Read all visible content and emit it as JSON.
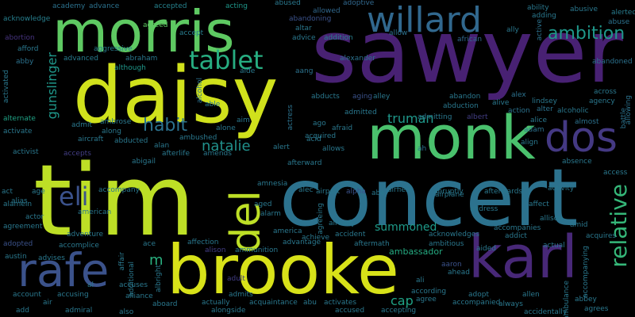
{
  "words": [
    {
      "text": "sawyer",
      "color": "#482173"
    },
    {
      "text": "tim",
      "color": "#bddf26"
    },
    {
      "text": "concert",
      "color": "#2c728e"
    },
    {
      "text": "daisy",
      "color": "#d0e11c"
    },
    {
      "text": "brooke",
      "color": "#d8e219"
    },
    {
      "text": "morris",
      "color": "#5ec962"
    },
    {
      "text": "monk",
      "color": "#4ac16d"
    },
    {
      "text": "karl",
      "color": "#482878"
    },
    {
      "text": "willard",
      "color": "#31688e"
    },
    {
      "text": "rafe",
      "color": "#3b528b"
    },
    {
      "text": "dos",
      "color": "#443983"
    },
    {
      "text": "del",
      "color": "#bddf26"
    },
    {
      "text": "tablet",
      "color": "#27ad81"
    },
    {
      "text": "relative",
      "color": "#35b779"
    },
    {
      "text": "ambition",
      "color": "#1f988b"
    },
    {
      "text": "eli",
      "color": "#3b528b"
    },
    {
      "text": "habit",
      "color": "#2c728e"
    },
    {
      "text": "natalie",
      "color": "#21918c"
    },
    {
      "text": "gunslinger",
      "color": "#1f988b"
    },
    {
      "text": "truman",
      "color": "#1f988b"
    },
    {
      "text": "summoned",
      "color": "#1e9b8a"
    },
    {
      "text": "cap",
      "color": "#20a386"
    },
    {
      "text": "m",
      "color": "#2ab07f"
    },
    {
      "text": "ambassador",
      "color": "#25ac82"
    },
    {
      "text": "acknowledge",
      "color": "#277f8e"
    },
    {
      "text": "academy",
      "color": "#2c728e"
    },
    {
      "text": "advance",
      "color": "#2c728e"
    },
    {
      "text": "accepted",
      "color": "#26828e"
    },
    {
      "text": "acting",
      "color": "#1f988b"
    },
    {
      "text": "abused",
      "color": "#2a788e"
    },
    {
      "text": "adoptive",
      "color": "#31688e"
    },
    {
      "text": "ability",
      "color": "#2a788e"
    },
    {
      "text": "abusive",
      "color": "#2a788e"
    },
    {
      "text": "alerted",
      "color": "#287c8e"
    },
    {
      "text": "abortion",
      "color": "#46337e"
    },
    {
      "text": "abandoning",
      "color": "#3b528b"
    },
    {
      "text": "allowed",
      "color": "#31688e"
    },
    {
      "text": "adding",
      "color": "#2a788e"
    },
    {
      "text": "abuse",
      "color": "#2c728e"
    },
    {
      "text": "agreed",
      "color": "#5ec962"
    },
    {
      "text": "accept",
      "color": "#287c8e"
    },
    {
      "text": "altar",
      "color": "#2a788e"
    },
    {
      "text": "advice",
      "color": "#2a788e"
    },
    {
      "text": "addition",
      "color": "#277f8e"
    },
    {
      "text": "allow",
      "color": "#2c728e"
    },
    {
      "text": "african",
      "color": "#31688e"
    },
    {
      "text": "ally",
      "color": "#2a788e"
    },
    {
      "text": "active",
      "color": "#2c728e"
    },
    {
      "text": "afford",
      "color": "#2a788e"
    },
    {
      "text": "abby",
      "color": "#2c728e"
    },
    {
      "text": "aggressive",
      "color": "#287c8e"
    },
    {
      "text": "advanced",
      "color": "#287c8e"
    },
    {
      "text": "abraham",
      "color": "#2a788e"
    },
    {
      "text": "although",
      "color": "#1f988b"
    },
    {
      "text": "aide",
      "color": "#2a788e"
    },
    {
      "text": "aang",
      "color": "#2c728e"
    },
    {
      "text": "alexander",
      "color": "#2c728e"
    },
    {
      "text": "abandoned",
      "color": "#2c728e"
    },
    {
      "text": "alcohol",
      "color": "#2c728e"
    },
    {
      "text": "activated",
      "color": "#2a788e"
    },
    {
      "text": "able",
      "color": "#2a788e"
    },
    {
      "text": "abducts",
      "color": "#2a788e"
    },
    {
      "text": "aging",
      "color": "#3b528b"
    },
    {
      "text": "alley",
      "color": "#2a788e"
    },
    {
      "text": "abandon",
      "color": "#2a788e"
    },
    {
      "text": "alive",
      "color": "#2a788e"
    },
    {
      "text": "alex",
      "color": "#2c728e"
    },
    {
      "text": "lindsey",
      "color": "#2a788e"
    },
    {
      "text": "across",
      "color": "#2a788e"
    },
    {
      "text": "agency",
      "color": "#2a788e"
    },
    {
      "text": "battle",
      "color": "#2c728e"
    },
    {
      "text": "allowing",
      "color": "#2c728e"
    },
    {
      "text": "alternate",
      "color": "#20a386"
    },
    {
      "text": "admit",
      "color": "#2a788e"
    },
    {
      "text": "ambrose",
      "color": "#2a788e"
    },
    {
      "text": "aim",
      "color": "#2a788e"
    },
    {
      "text": "actress",
      "color": "#2c728e"
    },
    {
      "text": "admitted",
      "color": "#2a788e"
    },
    {
      "text": "abduction",
      "color": "#2a788e"
    },
    {
      "text": "action",
      "color": "#2c728e"
    },
    {
      "text": "alter",
      "color": "#2c728e"
    },
    {
      "text": "alcoholic",
      "color": "#2a788e"
    },
    {
      "text": "almost",
      "color": "#2c728e"
    },
    {
      "text": "activate",
      "color": "#2a788e"
    },
    {
      "text": "aircraft",
      "color": "#2a788e"
    },
    {
      "text": "along",
      "color": "#2a788e"
    },
    {
      "text": "alan",
      "color": "#2a788e"
    },
    {
      "text": "alone",
      "color": "#2a788e"
    },
    {
      "text": "ago",
      "color": "#2a788e"
    },
    {
      "text": "admitting",
      "color": "#2a788e"
    },
    {
      "text": "albert",
      "color": "#433e85"
    },
    {
      "text": "alice",
      "color": "#2a788e"
    },
    {
      "text": "adam",
      "color": "#2c728e"
    },
    {
      "text": "abducted",
      "color": "#2a788e"
    },
    {
      "text": "ambushed",
      "color": "#2a788e"
    },
    {
      "text": "acid",
      "color": "#2a788e"
    },
    {
      "text": "afraid",
      "color": "#2a788e"
    },
    {
      "text": "acquired",
      "color": "#2a788e"
    },
    {
      "text": "align",
      "color": "#2a788e"
    },
    {
      "text": "activist",
      "color": "#2a788e"
    },
    {
      "text": "accepts",
      "color": "#433e85"
    },
    {
      "text": "afterlife",
      "color": "#2a788e"
    },
    {
      "text": "amends",
      "color": "#2a788e"
    },
    {
      "text": "alert",
      "color": "#2a788e"
    },
    {
      "text": "allows",
      "color": "#2a788e"
    },
    {
      "text": "ah",
      "color": "#2c728e"
    },
    {
      "text": "absence",
      "color": "#2a788e"
    },
    {
      "text": "abigail",
      "color": "#2a788e"
    },
    {
      "text": "afterward",
      "color": "#2a788e"
    },
    {
      "text": "act",
      "color": "#2a788e"
    },
    {
      "text": "age",
      "color": "#2a788e"
    },
    {
      "text": "accompany",
      "color": "#2a788e"
    },
    {
      "text": "amnesia",
      "color": "#2a788e"
    },
    {
      "text": "airport",
      "color": "#2a788e"
    },
    {
      "text": "alpha",
      "color": "#3b528b"
    },
    {
      "text": "abe",
      "color": "#2a788e"
    },
    {
      "text": "airfield",
      "color": "#2a788e"
    },
    {
      "text": "abruptly",
      "color": "#2a788e"
    },
    {
      "text": "afterwards",
      "color": "#2a788e"
    },
    {
      "text": "activity",
      "color": "#2a788e"
    },
    {
      "text": "access",
      "color": "#2a788e"
    },
    {
      "text": "alamein",
      "color": "#2a788e"
    },
    {
      "text": "alec",
      "color": "#2a788e"
    },
    {
      "text": "airplane",
      "color": "#2a788e"
    },
    {
      "text": "alias",
      "color": "#2a788e"
    },
    {
      "text": "american",
      "color": "#2a788e"
    },
    {
      "text": "aged",
      "color": "#2a788e"
    },
    {
      "text": "agreeing",
      "color": "#2a788e"
    },
    {
      "text": "address",
      "color": "#2a788e"
    },
    {
      "text": "affect",
      "color": "#2a788e"
    },
    {
      "text": "actor",
      "color": "#2a788e"
    },
    {
      "text": "alarm",
      "color": "#2a788e"
    },
    {
      "text": "already",
      "color": "#2a788e"
    },
    {
      "text": "allison",
      "color": "#2a788e"
    },
    {
      "text": "agreement",
      "color": "#2a788e"
    },
    {
      "text": "accompanies",
      "color": "#2a788e"
    },
    {
      "text": "amid",
      "color": "#2a788e"
    },
    {
      "text": "adventure",
      "color": "#2a788e"
    },
    {
      "text": "america",
      "color": "#2a788e"
    },
    {
      "text": "achieve",
      "color": "#2a788e"
    },
    {
      "text": "accident",
      "color": "#2a788e"
    },
    {
      "text": "acknowledges",
      "color": "#2a788e"
    },
    {
      "text": "addict",
      "color": "#2a788e"
    },
    {
      "text": "acquires",
      "color": "#2a788e"
    },
    {
      "text": "adopted",
      "color": "#3b528b"
    },
    {
      "text": "accomplice",
      "color": "#2a788e"
    },
    {
      "text": "ace",
      "color": "#2a788e"
    },
    {
      "text": "affection",
      "color": "#2a788e"
    },
    {
      "text": "advantage",
      "color": "#2a788e"
    },
    {
      "text": "aftermath",
      "color": "#2a788e"
    },
    {
      "text": "ambitious",
      "color": "#2a788e"
    },
    {
      "text": "aided",
      "color": "#2a788e"
    },
    {
      "text": "actual",
      "color": "#2a788e"
    },
    {
      "text": "austin",
      "color": "#2a788e"
    },
    {
      "text": "advises",
      "color": "#2a788e"
    },
    {
      "text": "affair",
      "color": "#2a788e"
    },
    {
      "text": "alison",
      "color": "#433e85"
    },
    {
      "text": "ammunition",
      "color": "#2a788e"
    },
    {
      "text": "aaron",
      "color": "#3b528b"
    },
    {
      "text": "ahead",
      "color": "#2a788e"
    },
    {
      "text": "accompanying",
      "color": "#2a788e"
    },
    {
      "text": "additional",
      "color": "#2a788e"
    },
    {
      "text": "albright",
      "color": "#2a788e"
    },
    {
      "text": "adult",
      "color": "#433e85"
    },
    {
      "text": "al",
      "color": "#2a788e"
    },
    {
      "text": "accuses",
      "color": "#2a788e"
    },
    {
      "text": "ali",
      "color": "#2a788e"
    },
    {
      "text": "according",
      "color": "#2a788e"
    },
    {
      "text": "adopt",
      "color": "#2a788e"
    },
    {
      "text": "allen",
      "color": "#2a788e"
    },
    {
      "text": "ambulance",
      "color": "#2a788e"
    },
    {
      "text": "abbey",
      "color": "#2a788e"
    },
    {
      "text": "account",
      "color": "#2a788e"
    },
    {
      "text": "accusing",
      "color": "#2a788e"
    },
    {
      "text": "alliance",
      "color": "#2a788e"
    },
    {
      "text": "admits",
      "color": "#2a788e"
    },
    {
      "text": "air",
      "color": "#2a788e"
    },
    {
      "text": "aboard",
      "color": "#2a788e"
    },
    {
      "text": "actually",
      "color": "#2a788e"
    },
    {
      "text": "acquaintance",
      "color": "#2a788e"
    },
    {
      "text": "abu",
      "color": "#2a788e"
    },
    {
      "text": "activates",
      "color": "#2a788e"
    },
    {
      "text": "agree",
      "color": "#2a788e"
    },
    {
      "text": "accompanied",
      "color": "#2a788e"
    },
    {
      "text": "always",
      "color": "#2a788e"
    },
    {
      "text": "agrees",
      "color": "#2a788e"
    },
    {
      "text": "add",
      "color": "#2a788e"
    },
    {
      "text": "admiral",
      "color": "#2a788e"
    },
    {
      "text": "also",
      "color": "#2a788e"
    },
    {
      "text": "alongside",
      "color": "#2a788e"
    },
    {
      "text": "accused",
      "color": "#2a788e"
    },
    {
      "text": "accepting",
      "color": "#2a788e"
    },
    {
      "text": "accidentally",
      "color": "#2a788e"
    }
  ]
}
